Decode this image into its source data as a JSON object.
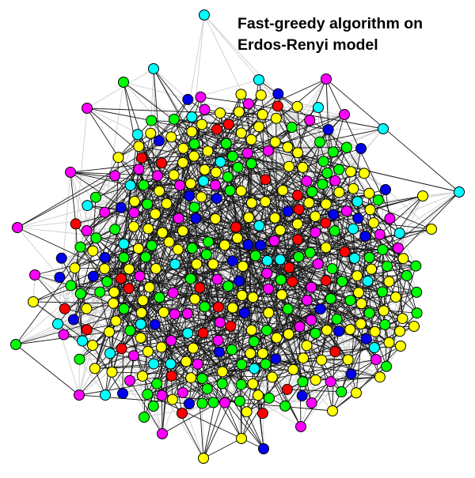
{
  "title": {
    "line1": "Fast-greedy algorithm on",
    "line2": "Erdos-Renyi model"
  },
  "palette": {
    "yellow": "#ffff00",
    "green": "#00ff00",
    "magenta": "#ff00ff",
    "blue": "#0000ee",
    "red": "#ff0000",
    "cyan": "#00ffff",
    "node_outline": "#000000",
    "edge_dark": "#1a1a1a",
    "edge_light": "#c8c8c8"
  },
  "graph": {
    "node_count": 380,
    "communities": [
      "yellow",
      "green",
      "magenta",
      "blue",
      "red",
      "cyan"
    ]
  }
}
